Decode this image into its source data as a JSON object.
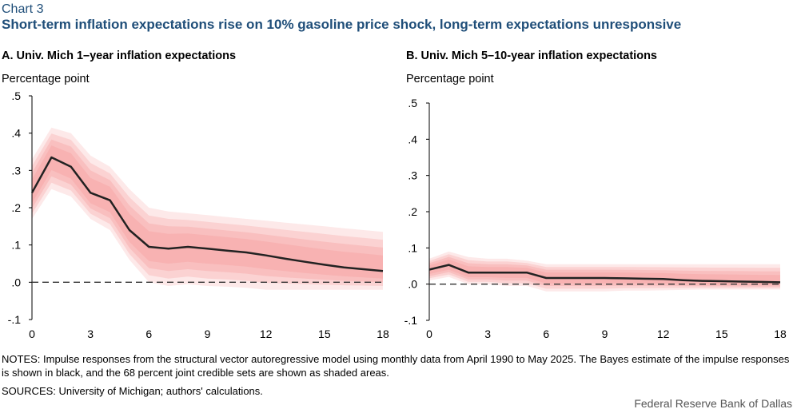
{
  "header": {
    "chart_number": "Chart 3",
    "title": "Short-term inflation expectations rise on 10% gasoline price shock, long-term expectations unresponsive"
  },
  "footer": {
    "notes": "NOTES: Impulse responses from the structural vector autoregressive model using monthly data from April 1990 to May 2025. The Bayes estimate of the impulse responses is shown in black, and the 68 percent joint credible sets are shown as shaded areas.",
    "sources": "SOURCES: University of Michigan; authors' calculations.",
    "credit": "Federal Reserve Bank of Dallas"
  },
  "colors": {
    "band": "#f7a8a8",
    "line": "#222222",
    "zero": "#333333"
  },
  "chart_data": [
    {
      "type": "line",
      "panel_title": "A. Univ. Mich 1–year inflation expectations",
      "ylabel": "Percentage point",
      "xlabel": "",
      "ylim": [
        -0.1,
        0.5
      ],
      "xlim": [
        0,
        18
      ],
      "yticks": [
        ".5",
        ".4",
        ".3",
        ".2",
        ".1",
        ".0",
        "-.1"
      ],
      "xticks": [
        "0",
        "3",
        "6",
        "9",
        "12",
        "15",
        "18"
      ],
      "x": [
        0,
        1,
        2,
        3,
        4,
        5,
        6,
        7,
        8,
        9,
        10,
        11,
        12,
        13,
        14,
        15,
        16,
        17,
        18
      ],
      "series": [
        {
          "name": "Bayes estimate",
          "values": [
            0.24,
            0.335,
            0.31,
            0.24,
            0.22,
            0.14,
            0.095,
            0.09,
            0.095,
            0.09,
            0.085,
            0.08,
            0.072,
            0.063,
            0.055,
            0.047,
            0.04,
            0.035,
            0.03
          ]
        },
        {
          "name": "68% credible set upper",
          "values": [
            0.33,
            0.415,
            0.4,
            0.34,
            0.31,
            0.25,
            0.2,
            0.19,
            0.185,
            0.18,
            0.175,
            0.17,
            0.165,
            0.16,
            0.155,
            0.15,
            0.145,
            0.14,
            0.135
          ]
        },
        {
          "name": "68% credible set lower",
          "values": [
            0.17,
            0.25,
            0.23,
            0.17,
            0.14,
            0.06,
            0.0,
            -0.01,
            -0.005,
            -0.01,
            -0.012,
            -0.015,
            -0.02,
            -0.02,
            -0.02,
            -0.02,
            -0.02,
            -0.02,
            -0.02
          ]
        }
      ]
    },
    {
      "type": "line",
      "panel_title": "B. Univ. Mich 5–10-year inflation expectations",
      "ylabel": "Percentage point",
      "xlabel": "",
      "ylim": [
        -0.1,
        0.5
      ],
      "xlim": [
        0,
        18
      ],
      "yticks": [
        ".5",
        ".4",
        ".3",
        ".2",
        ".1",
        ".0",
        "-.1"
      ],
      "xticks": [
        "0",
        "3",
        "6",
        "9",
        "12",
        "15",
        "18"
      ],
      "x": [
        0,
        1,
        2,
        3,
        4,
        5,
        6,
        7,
        8,
        9,
        10,
        11,
        12,
        13,
        14,
        15,
        16,
        17,
        18
      ],
      "series": [
        {
          "name": "Bayes estimate",
          "values": [
            0.04,
            0.053,
            0.032,
            0.032,
            0.032,
            0.032,
            0.017,
            0.017,
            0.017,
            0.017,
            0.016,
            0.015,
            0.014,
            0.011,
            0.009,
            0.008,
            0.007,
            0.006,
            0.005
          ]
        },
        {
          "name": "68% credible set upper",
          "values": [
            0.07,
            0.09,
            0.075,
            0.07,
            0.07,
            0.065,
            0.055,
            0.055,
            0.055,
            0.055,
            0.055,
            0.055,
            0.055,
            0.055,
            0.055,
            0.055,
            0.055,
            0.055,
            0.055
          ]
        },
        {
          "name": "68% credible set lower",
          "values": [
            0.01,
            0.02,
            0.0,
            0.0,
            -0.005,
            -0.005,
            -0.02,
            -0.02,
            -0.02,
            -0.02,
            -0.018,
            -0.018,
            -0.017,
            -0.016,
            -0.015,
            -0.015,
            -0.015,
            -0.015,
            -0.015
          ]
        }
      ]
    }
  ]
}
